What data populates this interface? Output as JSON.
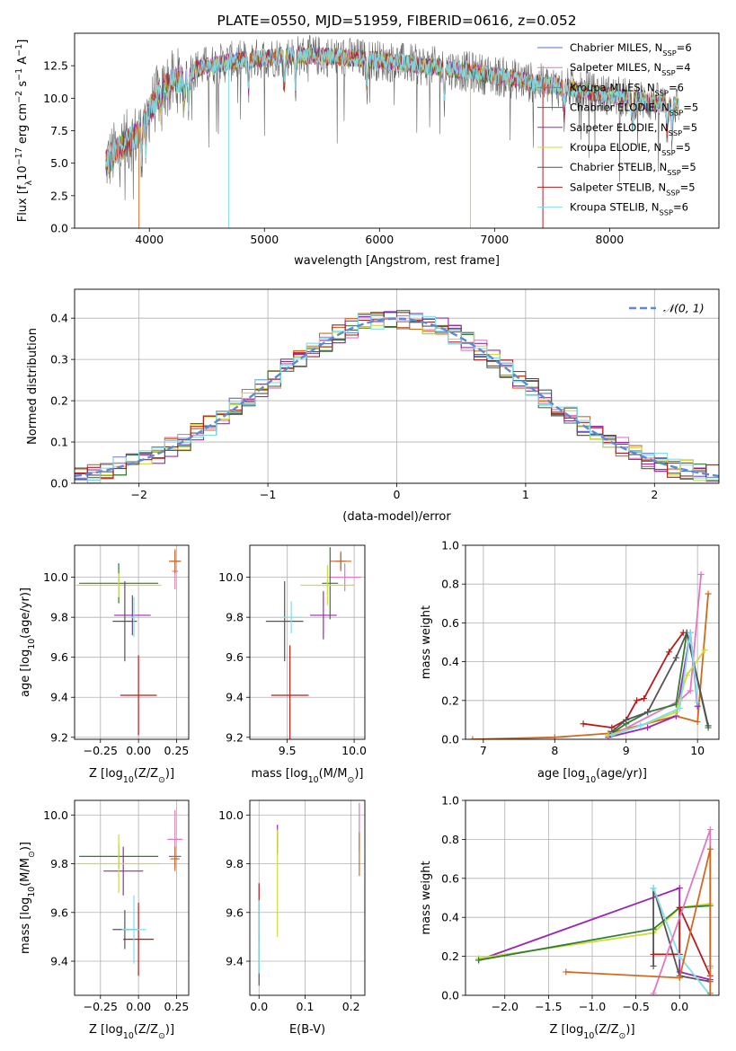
{
  "colors": {
    "chabrier_miles": "#5470c6",
    "salpeter_miles": "#e377c2",
    "kroupa_miles": "#d2691e",
    "chabrier_elodie": "#2e7d32",
    "salpeter_elodie": "#9c27b0",
    "kroupa_elodie": "#cddc39",
    "chabrier_stelib": "#555555",
    "salpeter_stelib": "#b71c1c",
    "kroupa_stelib": "#80deea",
    "gauss": "#5b8bd6"
  },
  "chart_data": [
    {
      "id": "spectrum",
      "type": "line",
      "title": "PLATE=0550, MJD=51959, FIBERID=0616, z=0.052",
      "xlabel": "wavelength [Angstrom, rest frame]",
      "ylabel_parts": [
        "Flux [f",
        "λ",
        "10",
        "−17",
        " erg cm",
        "−2",
        " s",
        "−1",
        " A",
        "−1",
        "]"
      ],
      "xlim": [
        3350,
        8950
      ],
      "ylim": [
        0,
        15
      ],
      "xticks": [
        4000,
        5000,
        6000,
        7000,
        8000
      ],
      "yticks": [
        0.0,
        2.5,
        5.0,
        7.5,
        10.0,
        12.5
      ],
      "legend_position": "upper right",
      "continuum": {
        "x": [
          3620,
          3700,
          3800,
          3900,
          4000,
          4100,
          4200,
          4300,
          4400,
          4500,
          4700,
          5000,
          5300,
          5600,
          5900,
          6200,
          6500,
          6800,
          7100,
          7400,
          7700,
          8000,
          8300,
          8600
        ],
        "y": [
          5.0,
          5.8,
          6.6,
          7.2,
          9.0,
          10.6,
          11.2,
          11.6,
          12.2,
          12.5,
          12.8,
          13.1,
          13.3,
          13.2,
          13.0,
          12.7,
          12.4,
          12.0,
          11.6,
          11.1,
          10.7,
          10.2,
          9.8,
          9.4
        ]
      },
      "series": [
        {
          "name_parts": [
            "Chabrier MILES, N",
            "SSP",
            "=6"
          ],
          "color_key": "chabrier_miles"
        },
        {
          "name_parts": [
            "Salpeter MILES, N",
            "SSP",
            "=4"
          ],
          "color_key": "salpeter_miles"
        },
        {
          "name_parts": [
            "Kroupa MILES, N",
            "SSP",
            "=6"
          ],
          "color_key": "kroupa_miles"
        },
        {
          "name_parts": [
            "Chabrier ELODIE, N",
            "SSP",
            "=5"
          ],
          "color_key": "chabrier_elodie"
        },
        {
          "name_parts": [
            "Salpeter ELODIE, N",
            "SSP",
            "=5"
          ],
          "color_key": "salpeter_elodie"
        },
        {
          "name_parts": [
            "Kroupa ELODIE, N",
            "SSP",
            "=5"
          ],
          "color_key": "kroupa_elodie"
        },
        {
          "name_parts": [
            "Chabrier STELIB, N",
            "SSP",
            "=5"
          ],
          "color_key": "chabrier_stelib"
        },
        {
          "name_parts": [
            "Salpeter STELIB, N",
            "SSP",
            "=5"
          ],
          "color_key": "salpeter_stelib"
        },
        {
          "name_parts": [
            "Kroupa STELIB, N",
            "SSP",
            "=6"
          ],
          "color_key": "kroupa_stelib"
        }
      ],
      "drops": [
        {
          "x": 3910,
          "color_key": "kroupa_miles"
        },
        {
          "x": 4690,
          "color_key": "kroupa_stelib"
        },
        {
          "x": 6790,
          "color_key": "kroupa_elodie"
        },
        {
          "x": 7420,
          "color_key": "salpeter_stelib"
        }
      ]
    },
    {
      "id": "residuals",
      "type": "histogram",
      "xlabel": "(data-model)/error",
      "ylabel": "Normed distribution",
      "xlim": [
        -2.5,
        2.5
      ],
      "ylim": [
        0,
        0.47
      ],
      "xticks": [
        -2,
        -1,
        0,
        1,
        2
      ],
      "yticks": [
        0.0,
        0.1,
        0.2,
        0.3,
        0.4
      ],
      "grid": true,
      "bin_width": 0.1,
      "legend": {
        "label_parts": [
          "𝒩",
          "(0, 1)"
        ],
        "position": "upper right"
      }
    },
    {
      "id": "age_vs_Z",
      "type": "scatter-errorbar",
      "xlabel_parts": [
        "Z [log",
        "10",
        "(Z/Z",
        "⊙",
        ")]"
      ],
      "ylabel_parts": [
        "age  [log",
        "10",
        "(age/yr)]"
      ],
      "xlim": [
        -0.42,
        0.33
      ],
      "ylim": [
        9.19,
        10.16
      ],
      "xticks": [
        -0.25,
        0.0,
        0.25
      ],
      "yticks": [
        9.2,
        9.4,
        9.6,
        9.8,
        10.0
      ],
      "grid": true,
      "points": [
        {
          "color_key": "chabrier_miles",
          "x": 0.24,
          "y": 10.08,
          "xerr": 0.03,
          "yerr": 0.05
        },
        {
          "color_key": "salpeter_miles",
          "x": 0.24,
          "y": 10.03,
          "xerr": 0.02,
          "yerr": 0.09
        },
        {
          "color_key": "kroupa_miles",
          "x": 0.24,
          "y": 10.08,
          "xerr": 0.04,
          "yerr": 0.06
        },
        {
          "color_key": "chabrier_elodie",
          "x": -0.13,
          "y": 9.97,
          "xerr": 0.26,
          "yerr": 0.1
        },
        {
          "color_key": "salpeter_elodie",
          "x": -0.04,
          "y": 9.81,
          "xerr": 0.12,
          "yerr": 0.1
        },
        {
          "color_key": "kroupa_elodie",
          "x": -0.13,
          "y": 9.96,
          "xerr": 0.28,
          "yerr": 0.06
        },
        {
          "color_key": "chabrier_stelib",
          "x": -0.09,
          "y": 9.78,
          "xerr": 0.08,
          "yerr": 0.2
        },
        {
          "color_key": "salpeter_stelib",
          "x": 0.0,
          "y": 9.41,
          "xerr": 0.12,
          "yerr": 0.2
        },
        {
          "color_key": "kroupa_stelib",
          "x": -0.03,
          "y": 9.8,
          "xerr": 0.02,
          "yerr": 0.1
        }
      ]
    },
    {
      "id": "age_vs_mass",
      "type": "scatter-errorbar",
      "xlabel_parts": [
        "mass [log",
        "10",
        "(M/M",
        "⊙",
        ")]"
      ],
      "ylabel_parts": [],
      "xlim": [
        9.22,
        10.08
      ],
      "ylim": [
        9.19,
        10.16
      ],
      "xticks": [
        9.5,
        10.0
      ],
      "yticks": [
        9.2,
        9.4,
        9.6,
        9.8,
        10.0
      ],
      "grid": true,
      "points": [
        {
          "color_key": "chabrier_miles",
          "x": 9.9,
          "y": 10.08,
          "xerr": 0.04,
          "yerr": 0.04
        },
        {
          "color_key": "salpeter_miles",
          "x": 9.93,
          "y": 10.0,
          "xerr": 0.12,
          "yerr": 0.07
        },
        {
          "color_key": "kroupa_miles",
          "x": 9.9,
          "y": 10.08,
          "xerr": 0.08,
          "yerr": 0.05
        },
        {
          "color_key": "chabrier_elodie",
          "x": 9.82,
          "y": 9.97,
          "xerr": 0.06,
          "yerr": 0.18
        },
        {
          "color_key": "salpeter_elodie",
          "x": 9.77,
          "y": 9.81,
          "xerr": 0.1,
          "yerr": 0.12
        },
        {
          "color_key": "kroupa_elodie",
          "x": 9.8,
          "y": 9.96,
          "xerr": 0.2,
          "yerr": 0.1
        },
        {
          "color_key": "chabrier_stelib",
          "x": 9.48,
          "y": 9.78,
          "xerr": 0.14,
          "yerr": 0.2
        },
        {
          "color_key": "salpeter_stelib",
          "x": 9.52,
          "y": 9.41,
          "xerr": 0.14,
          "yerr": 0.25
        },
        {
          "color_key": "kroupa_stelib",
          "x": 9.53,
          "y": 9.8,
          "xerr": 0.07,
          "yerr": 0.08
        }
      ]
    },
    {
      "id": "mass_vs_Z",
      "type": "scatter-errorbar",
      "xlabel_parts": [
        "Z [log",
        "10",
        "(Z/Z",
        "⊙",
        ")]"
      ],
      "ylabel_parts": [
        "mass [log",
        "10",
        "(M/M",
        "⊙",
        ")]"
      ],
      "xlim": [
        -0.42,
        0.33
      ],
      "ylim": [
        9.26,
        10.06
      ],
      "xticks": [
        -0.25,
        0.0,
        0.25
      ],
      "yticks": [
        9.4,
        9.6,
        9.8,
        10.0
      ],
      "grid": true,
      "points": [
        {
          "color_key": "chabrier_miles",
          "x": 0.24,
          "y": 9.83,
          "xerr": 0.04,
          "yerr": 0.04
        },
        {
          "color_key": "salpeter_miles",
          "x": 0.24,
          "y": 9.9,
          "xerr": 0.05,
          "yerr": 0.12
        },
        {
          "color_key": "kroupa_miles",
          "x": 0.24,
          "y": 9.82,
          "xerr": 0.03,
          "yerr": 0.05
        },
        {
          "color_key": "chabrier_elodie",
          "x": -0.13,
          "y": 9.83,
          "xerr": 0.26,
          "yerr": 0.05
        },
        {
          "color_key": "salpeter_elodie",
          "x": -0.1,
          "y": 9.77,
          "xerr": 0.13,
          "yerr": 0.1
        },
        {
          "color_key": "kroupa_elodie",
          "x": -0.13,
          "y": 9.8,
          "xerr": 0.27,
          "yerr": 0.12
        },
        {
          "color_key": "chabrier_stelib",
          "x": -0.09,
          "y": 9.53,
          "xerr": 0.08,
          "yerr": 0.08
        },
        {
          "color_key": "salpeter_stelib",
          "x": 0.0,
          "y": 9.49,
          "xerr": 0.1,
          "yerr": 0.15
        },
        {
          "color_key": "kroupa_stelib",
          "x": -0.03,
          "y": 9.53,
          "xerr": 0.08,
          "yerr": 0.14
        }
      ]
    },
    {
      "id": "mass_vs_ebv",
      "type": "scatter-errorbar",
      "xlabel_parts": [
        "E(B-V)"
      ],
      "ylabel_parts": [],
      "xlim": [
        -0.02,
        0.23
      ],
      "ylim": [
        9.26,
        10.06
      ],
      "xticks": [
        0.0,
        0.1,
        0.2
      ],
      "yticks": [
        9.4,
        9.6,
        9.8,
        10.0
      ],
      "grid": true,
      "points": [
        {
          "color_key": "salpeter_miles",
          "x": 0.218,
          "y": 9.95,
          "xerr": 0,
          "yerr": 0.1
        },
        {
          "color_key": "kroupa_miles",
          "x": 0.218,
          "y": 9.84,
          "xerr": 0,
          "yerr": 0.09
        },
        {
          "color_key": "salpeter_elodie",
          "x": 0.04,
          "y": 9.9,
          "xerr": 0,
          "yerr": 0.06
        },
        {
          "color_key": "kroupa_elodie",
          "x": 0.04,
          "y": 9.72,
          "xerr": 0,
          "yerr": 0.22
        },
        {
          "color_key": "salpeter_stelib",
          "x": 0.0,
          "y": 9.6,
          "xerr": 0,
          "yerr": 0.12
        },
        {
          "color_key": "chabrier_stelib",
          "x": 0.0,
          "y": 9.4,
          "xerr": 0,
          "yerr": 0.1
        },
        {
          "color_key": "kroupa_stelib",
          "x": 0.0,
          "y": 9.5,
          "xerr": 0,
          "yerr": 0.15
        }
      ]
    },
    {
      "id": "weight_vs_age",
      "type": "line",
      "xlabel_parts": [
        "age  [log",
        "10",
        "(age/yr)]"
      ],
      "ylabel": "mass weight",
      "xlim": [
        6.75,
        10.3
      ],
      "ylim": [
        0,
        1
      ],
      "xticks": [
        7,
        8,
        9,
        10
      ],
      "yticks": [
        0.0,
        0.2,
        0.4,
        0.6,
        0.8,
        1.0
      ],
      "grid": true,
      "series": [
        {
          "color_key": "kroupa_miles",
          "x": [
            6.85,
            8.0,
            8.75,
            9.7,
            10.0,
            10.15
          ],
          "y": [
            0.0,
            0.01,
            0.03,
            0.12,
            0.09,
            0.75
          ]
        },
        {
          "color_key": "salpeter_miles",
          "x": [
            8.75,
            9.75,
            9.9,
            10.05
          ],
          "y": [
            0.01,
            0.2,
            0.25,
            0.85
          ]
        },
        {
          "color_key": "salpeter_stelib",
          "x": [
            8.4,
            8.8,
            9.0,
            9.15,
            9.25,
            9.6,
            9.8
          ],
          "y": [
            0.08,
            0.06,
            0.1,
            0.2,
            0.21,
            0.45,
            0.55
          ]
        },
        {
          "color_key": "chabrier_elodie",
          "x": [
            8.75,
            9.0,
            9.3,
            9.7,
            9.85,
            10.15
          ],
          "y": [
            0.02,
            0.08,
            0.14,
            0.18,
            0.55,
            0.06
          ]
        },
        {
          "color_key": "salpeter_elodie",
          "x": [
            8.75,
            9.3,
            9.7,
            9.9,
            10.0
          ],
          "y": [
            0.01,
            0.06,
            0.12,
            0.55,
            0.17
          ]
        },
        {
          "color_key": "kroupa_elodie",
          "x": [
            8.75,
            9.2,
            9.7,
            9.85,
            10.1
          ],
          "y": [
            0.02,
            0.07,
            0.14,
            0.33,
            0.46
          ]
        },
        {
          "color_key": "chabrier_stelib",
          "x": [
            8.8,
            9.0,
            9.3,
            9.7,
            9.85,
            10.15
          ],
          "y": [
            0.04,
            0.1,
            0.14,
            0.42,
            0.55,
            0.07
          ]
        },
        {
          "color_key": "kroupa_stelib",
          "x": [
            8.8,
            9.2,
            9.75,
            9.9,
            10.0
          ],
          "y": [
            0.02,
            0.07,
            0.16,
            0.55,
            0.19
          ]
        }
      ]
    },
    {
      "id": "weight_vs_Z",
      "type": "line",
      "xlabel_parts": [
        "Z [log",
        "10",
        "(Z/Z",
        "⊙",
        ")]"
      ],
      "ylabel": "mass weight",
      "xlim": [
        -2.45,
        0.45
      ],
      "ylim": [
        0,
        1
      ],
      "xticks": [
        -2.0,
        -1.5,
        -1.0,
        -0.5,
        0.0
      ],
      "yticks": [
        0.0,
        0.2,
        0.4,
        0.6,
        0.8,
        1.0
      ],
      "grid": true,
      "series": [
        {
          "color_key": "salpeter_elodie",
          "x": [
            -2.3,
            0.0,
            0.0,
            0.35
          ],
          "y": [
            0.18,
            0.55,
            0.12,
            0.08
          ]
        },
        {
          "color_key": "kroupa_elodie",
          "x": [
            -2.3,
            -0.3,
            0.0,
            0.35
          ],
          "y": [
            0.19,
            0.32,
            0.45,
            0.47
          ]
        },
        {
          "color_key": "chabrier_elodie",
          "x": [
            -2.3,
            -0.3,
            0.0,
            0.35
          ],
          "y": [
            0.18,
            0.34,
            0.45,
            0.46
          ]
        },
        {
          "color_key": "chabrier_stelib",
          "x": [
            -0.3,
            -0.3,
            0.0,
            0.35
          ],
          "y": [
            0.15,
            0.55,
            0.1,
            0.07
          ]
        },
        {
          "color_key": "salpeter_stelib",
          "x": [
            -0.3,
            0.0,
            0.0,
            0.35
          ],
          "y": [
            0.21,
            0.21,
            0.45,
            0.1
          ]
        },
        {
          "color_key": "kroupa_stelib",
          "x": [
            -0.3,
            0.0,
            0.35,
            0.35
          ],
          "y": [
            0.55,
            0.2,
            0.0,
            0.14
          ]
        },
        {
          "color_key": "salpeter_miles",
          "x": [
            -0.3,
            0.35,
            0.35
          ],
          "y": [
            0.01,
            0.85,
            0.15
          ]
        },
        {
          "color_key": "kroupa_miles",
          "x": [
            -1.3,
            0.0,
            0.35,
            0.35
          ],
          "y": [
            0.12,
            0.09,
            0.75,
            0.01
          ]
        }
      ]
    }
  ]
}
